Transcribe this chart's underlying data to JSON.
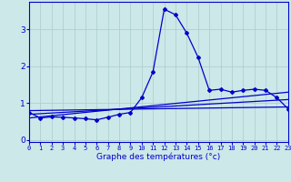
{
  "x": [
    0,
    1,
    2,
    3,
    4,
    5,
    6,
    7,
    8,
    9,
    10,
    11,
    12,
    13,
    14,
    15,
    16,
    17,
    18,
    19,
    20,
    21,
    22,
    23
  ],
  "y_main": [
    0.75,
    0.6,
    0.63,
    0.62,
    0.6,
    0.58,
    0.55,
    0.62,
    0.7,
    0.75,
    1.15,
    1.85,
    3.55,
    3.4,
    2.9,
    2.25,
    1.35,
    1.38,
    1.3,
    1.35,
    1.38,
    1.35,
    1.15,
    0.85
  ],
  "trend1_x": [
    0,
    23
  ],
  "trend1_y": [
    0.6,
    1.3
  ],
  "trend2_x": [
    0,
    23
  ],
  "trend2_y": [
    0.7,
    1.1
  ],
  "trend3_x": [
    0,
    23
  ],
  "trend3_y": [
    0.8,
    0.9
  ],
  "line_color": "#0000cc",
  "bg_color": "#cce8e8",
  "grid_color": "#aacccc",
  "xlabel": "Graphe des températures (°c)",
  "xlim": [
    0,
    23
  ],
  "ylim": [
    -0.05,
    3.75
  ],
  "yticks": [
    0,
    1,
    2,
    3
  ],
  "xticks": [
    0,
    1,
    2,
    3,
    4,
    5,
    6,
    7,
    8,
    9,
    10,
    11,
    12,
    13,
    14,
    15,
    16,
    17,
    18,
    19,
    20,
    21,
    22,
    23
  ]
}
